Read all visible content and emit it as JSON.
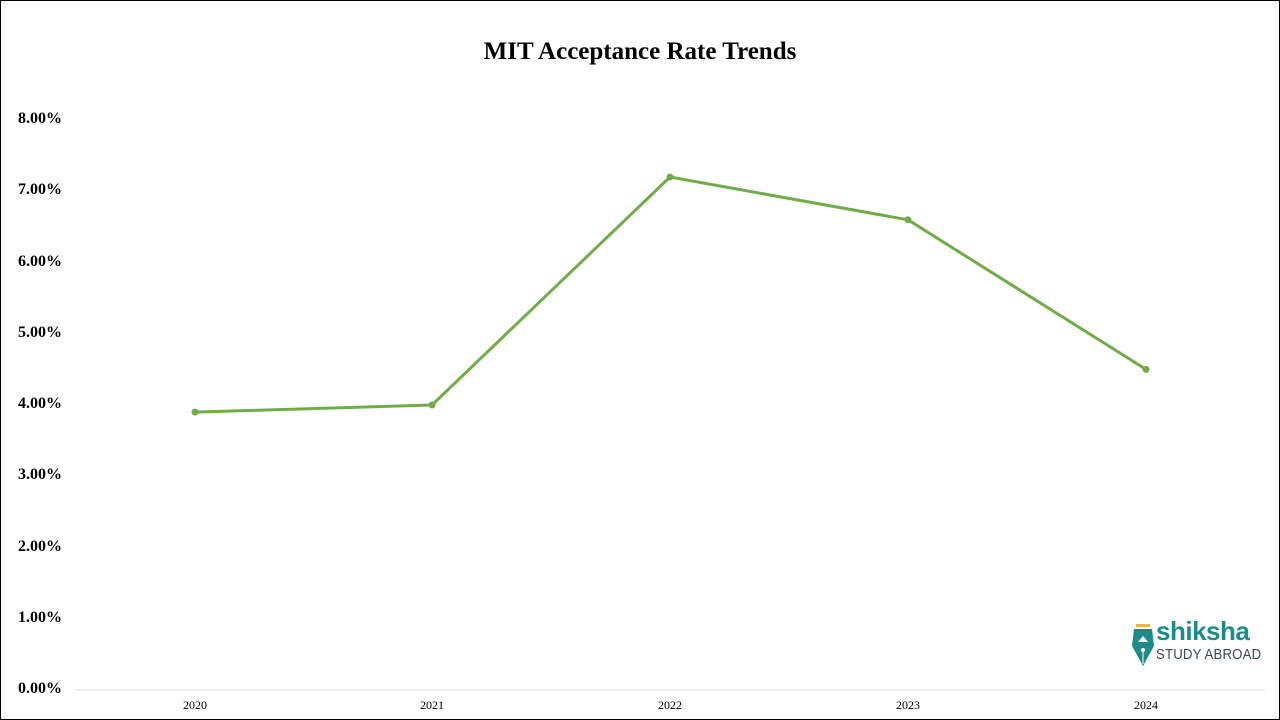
{
  "chart_data": {
    "type": "line",
    "title": "MIT Acceptance Rate Trends",
    "xlabel": "",
    "ylabel": "",
    "categories": [
      "2020",
      "2021",
      "2022",
      "2023",
      "2024"
    ],
    "series": [
      {
        "name": "Acceptance Rate",
        "values": [
          3.9,
          4.0,
          7.2,
          6.6,
          4.5
        ],
        "color": "#70ad47"
      }
    ],
    "ylim": [
      0,
      8
    ],
    "yticks": [
      "0.00%",
      "1.00%",
      "2.00%",
      "3.00%",
      "4.00%",
      "5.00%",
      "6.00%",
      "7.00%",
      "8.00%"
    ],
    "grid": false,
    "legend": "none",
    "value_format": "percent"
  },
  "logo": {
    "word": "shiksha",
    "sub": "STUDY ABROAD"
  }
}
